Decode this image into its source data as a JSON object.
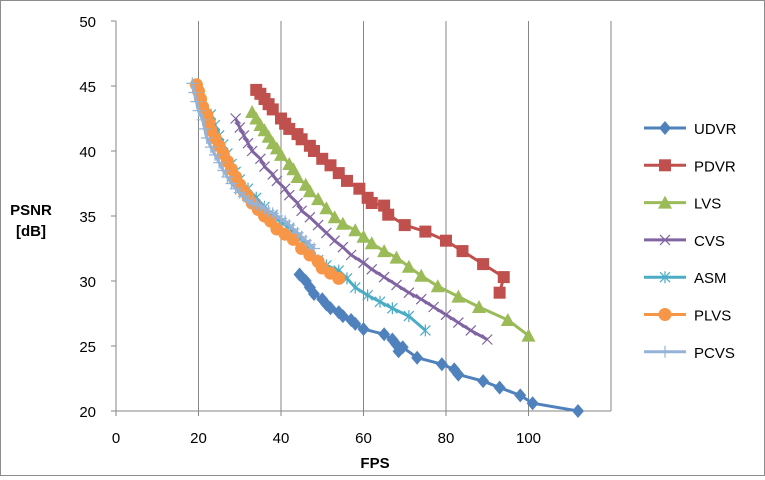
{
  "chart_data": {
    "type": "line",
    "title": "",
    "xlabel": "FPS",
    "ylabel_lines": [
      "PSNR",
      "[dB]"
    ],
    "xlim": [
      0,
      120
    ],
    "ylim": [
      20,
      50
    ],
    "x_ticks": [
      0,
      20,
      40,
      60,
      80,
      100
    ],
    "y_ticks": [
      20,
      25,
      30,
      35,
      40,
      45,
      50
    ],
    "grid": "vertical gridlines",
    "legend_position": "right",
    "series": [
      {
        "name": "UDVR",
        "color": "#4F81BD",
        "marker": "diamond",
        "points": [
          [
            44.5,
            30.5
          ],
          [
            46,
            30.0
          ],
          [
            47,
            29.5
          ],
          [
            48,
            29.0
          ],
          [
            50,
            28.6
          ],
          [
            51,
            28.2
          ],
          [
            52,
            27.9
          ],
          [
            54,
            27.6
          ],
          [
            55,
            27.3
          ],
          [
            57,
            27.0
          ],
          [
            58,
            26.7
          ],
          [
            60,
            26.3
          ],
          [
            65,
            25.9
          ],
          [
            67,
            25.5
          ],
          [
            68,
            25.1
          ],
          [
            68.5,
            24.6
          ],
          [
            69.5,
            24.9
          ],
          [
            73,
            24.1
          ],
          [
            79,
            23.6
          ],
          [
            82,
            23.2
          ],
          [
            83,
            22.8
          ],
          [
            89,
            22.3
          ],
          [
            93,
            21.8
          ],
          [
            98,
            21.2
          ],
          [
            101,
            20.6
          ],
          [
            112,
            20.0
          ]
        ]
      },
      {
        "name": "PDVR",
        "color": "#C0504D",
        "marker": "square",
        "points": [
          [
            34,
            44.7
          ],
          [
            35,
            44.4
          ],
          [
            36,
            44.0
          ],
          [
            37,
            43.6
          ],
          [
            38,
            43.2
          ],
          [
            40,
            42.5
          ],
          [
            41,
            42.1
          ],
          [
            42,
            41.7
          ],
          [
            44,
            41.3
          ],
          [
            45,
            40.9
          ],
          [
            47,
            40.4
          ],
          [
            48,
            40.0
          ],
          [
            50,
            39.4
          ],
          [
            52,
            38.9
          ],
          [
            54,
            38.3
          ],
          [
            56,
            37.7
          ],
          [
            59,
            37.1
          ],
          [
            61,
            36.4
          ],
          [
            62,
            36.0
          ],
          [
            65,
            35.8
          ],
          [
            66,
            35.1
          ],
          [
            70,
            34.3
          ],
          [
            75,
            33.8
          ],
          [
            80,
            33.1
          ],
          [
            84,
            32.3
          ],
          [
            89,
            31.3
          ],
          [
            94,
            30.3
          ],
          [
            93,
            29.1
          ]
        ]
      },
      {
        "name": "LVS",
        "color": "#9BBB59",
        "marker": "triangle",
        "points": [
          [
            33,
            43.0
          ],
          [
            34,
            42.5
          ],
          [
            35,
            42.0
          ],
          [
            36,
            41.6
          ],
          [
            37,
            41.1
          ],
          [
            38,
            40.6
          ],
          [
            39,
            40.2
          ],
          [
            40,
            39.7
          ],
          [
            42,
            39.0
          ],
          [
            43,
            38.6
          ],
          [
            44,
            38.0
          ],
          [
            46,
            37.4
          ],
          [
            47,
            36.9
          ],
          [
            49,
            36.3
          ],
          [
            51,
            35.6
          ],
          [
            53,
            34.9
          ],
          [
            55,
            34.4
          ],
          [
            58,
            33.9
          ],
          [
            60,
            33.4
          ],
          [
            62,
            32.9
          ],
          [
            65,
            32.3
          ],
          [
            68,
            31.8
          ],
          [
            71,
            31.1
          ],
          [
            74,
            30.4
          ],
          [
            78,
            29.6
          ],
          [
            83,
            28.8
          ],
          [
            88,
            28.0
          ],
          [
            95,
            27.0
          ],
          [
            100,
            25.8
          ]
        ]
      },
      {
        "name": "CVS",
        "color": "#8064A2",
        "marker": "x",
        "points": [
          [
            29,
            42.5
          ],
          [
            30,
            41.8
          ],
          [
            31,
            41.2
          ],
          [
            32,
            40.6
          ],
          [
            33,
            40.0
          ],
          [
            35,
            39.4
          ],
          [
            36,
            38.8
          ],
          [
            38,
            38.2
          ],
          [
            39,
            37.7
          ],
          [
            41,
            37.1
          ],
          [
            42,
            36.6
          ],
          [
            44,
            36.0
          ],
          [
            45,
            35.4
          ],
          [
            47,
            34.9
          ],
          [
            49,
            34.3
          ],
          [
            51,
            33.7
          ],
          [
            53,
            33.1
          ],
          [
            55,
            32.6
          ],
          [
            57,
            32.0
          ],
          [
            60,
            31.4
          ],
          [
            62,
            30.9
          ],
          [
            65,
            30.3
          ],
          [
            68,
            29.7
          ],
          [
            71,
            29.1
          ],
          [
            74,
            28.6
          ],
          [
            77,
            28.0
          ],
          [
            80,
            27.4
          ],
          [
            83,
            26.8
          ],
          [
            86,
            26.2
          ],
          [
            90,
            25.5
          ]
        ]
      },
      {
        "name": "ASM",
        "color": "#4BACC6",
        "marker": "star",
        "points": [
          [
            23,
            42.8
          ],
          [
            24,
            42.0
          ],
          [
            25,
            41.2
          ],
          [
            26,
            40.5
          ],
          [
            27,
            39.8
          ],
          [
            28,
            39.0
          ],
          [
            29,
            38.4
          ],
          [
            30,
            37.8
          ],
          [
            32,
            37.1
          ],
          [
            34,
            36.4
          ],
          [
            36,
            35.7
          ],
          [
            38,
            35.1
          ],
          [
            40,
            34.5
          ],
          [
            42,
            34.1
          ],
          [
            44,
            33.4
          ],
          [
            46,
            32.8
          ],
          [
            47,
            32.3
          ],
          [
            49,
            31.6
          ],
          [
            51,
            31.2
          ],
          [
            54,
            30.8
          ],
          [
            56,
            30.2
          ],
          [
            58,
            29.5
          ],
          [
            61,
            28.9
          ],
          [
            64,
            28.4
          ],
          [
            67,
            27.9
          ],
          [
            71,
            27.3
          ],
          [
            75,
            26.2
          ]
        ]
      },
      {
        "name": "PLVS",
        "color": "#F79646",
        "marker": "circle",
        "points": [
          [
            19.5,
            45.1
          ],
          [
            20,
            44.6
          ],
          [
            20.5,
            44.0
          ],
          [
            21,
            43.4
          ],
          [
            22,
            42.8
          ],
          [
            22.5,
            42.2
          ],
          [
            23,
            41.6
          ],
          [
            24,
            41.0
          ],
          [
            25,
            40.4
          ],
          [
            26,
            39.8
          ],
          [
            27,
            39.2
          ],
          [
            28,
            38.6
          ],
          [
            29,
            38.0
          ],
          [
            30,
            37.4
          ],
          [
            31,
            36.9
          ],
          [
            32,
            36.5
          ],
          [
            33,
            36.0
          ],
          [
            34.5,
            35.5
          ],
          [
            36,
            35.0
          ],
          [
            37.5,
            34.6
          ],
          [
            39,
            34.0
          ],
          [
            41,
            33.6
          ],
          [
            43,
            33.2
          ],
          [
            45,
            32.5
          ],
          [
            47,
            32.0
          ],
          [
            49,
            31.5
          ],
          [
            50,
            31.0
          ],
          [
            52,
            30.6
          ],
          [
            54,
            30.2
          ]
        ]
      },
      {
        "name": "PCVS",
        "color": "#95B3D7",
        "marker": "plus",
        "points": [
          [
            18.5,
            45.2
          ],
          [
            19,
            44.5
          ],
          [
            19.5,
            43.8
          ],
          [
            20,
            43.1
          ],
          [
            21,
            42.4
          ],
          [
            21.5,
            41.7
          ],
          [
            22,
            41.0
          ],
          [
            23,
            40.3
          ],
          [
            24,
            39.7
          ],
          [
            25,
            39.1
          ],
          [
            26,
            38.5
          ],
          [
            27,
            38.0
          ],
          [
            28,
            37.5
          ],
          [
            29,
            37.1
          ],
          [
            30,
            36.8
          ],
          [
            31,
            36.5
          ],
          [
            32,
            36.2
          ],
          [
            33,
            36.0
          ],
          [
            34,
            35.9
          ],
          [
            35,
            35.8
          ],
          [
            36,
            35.6
          ],
          [
            37,
            35.4
          ],
          [
            38,
            35.2
          ],
          [
            39,
            35.0
          ],
          [
            40,
            34.8
          ],
          [
            41,
            34.6
          ],
          [
            42,
            34.3
          ],
          [
            43,
            34.0
          ],
          [
            44,
            33.7
          ],
          [
            45,
            33.4
          ],
          [
            46,
            33.1
          ],
          [
            47,
            32.8
          ],
          [
            48,
            32.5
          ]
        ]
      }
    ]
  }
}
